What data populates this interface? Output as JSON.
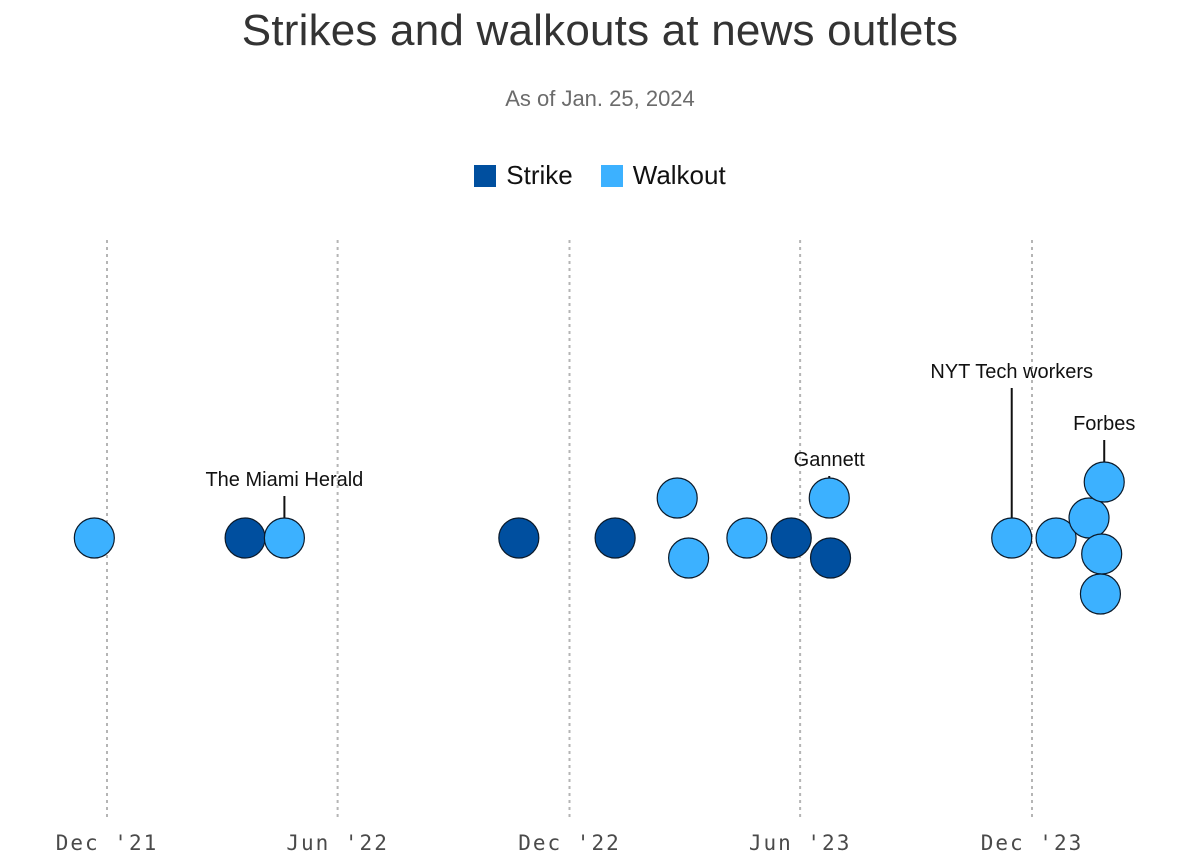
{
  "chart_data": {
    "type": "scatter",
    "title": "Strikes and walkouts at news outlets",
    "subtitle": "As of Jan. 25, 2024",
    "legend": [
      {
        "name": "Strike",
        "color": "#004F9F"
      },
      {
        "name": "Walkout",
        "color": "#3CB1FF"
      }
    ],
    "legend_placement": "top-center",
    "grid": true,
    "x_ticks": [
      {
        "date": "2021-12-01",
        "label": "Dec '21"
      },
      {
        "date": "2022-06-01",
        "label": "Jun '22"
      },
      {
        "date": "2022-12-01",
        "label": "Dec '22"
      },
      {
        "date": "2023-06-01",
        "label": "Jun '23"
      },
      {
        "date": "2023-12-01",
        "label": "Dec '23"
      }
    ],
    "xlim": [
      "2021-11-01",
      "2024-02-01"
    ],
    "points": [
      {
        "date": "2021-11-21",
        "type": "Walkout",
        "stack": 0
      },
      {
        "date": "2022-03-20",
        "type": "Strike",
        "stack": 0
      },
      {
        "date": "2022-04-20",
        "type": "Walkout",
        "stack": 0,
        "label": "The Miami Herald"
      },
      {
        "date": "2022-10-22",
        "type": "Strike",
        "stack": 0
      },
      {
        "date": "2023-01-06",
        "type": "Strike",
        "stack": 0
      },
      {
        "date": "2023-02-24",
        "type": "Walkout",
        "stack": 1
      },
      {
        "date": "2023-03-05",
        "type": "Walkout",
        "stack": -0.5
      },
      {
        "date": "2023-04-20",
        "type": "Walkout",
        "stack": 0
      },
      {
        "date": "2023-05-25",
        "type": "Strike",
        "stack": 0
      },
      {
        "date": "2023-06-24",
        "type": "Walkout",
        "stack": 1,
        "label": "Gannett"
      },
      {
        "date": "2023-06-25",
        "type": "Strike",
        "stack": -0.5
      },
      {
        "date": "2023-11-15",
        "type": "Walkout",
        "stack": 0,
        "label": "NYT Tech workers"
      },
      {
        "date": "2023-12-20",
        "type": "Walkout",
        "stack": 0
      },
      {
        "date": "2024-01-15",
        "type": "Walkout",
        "stack": 0.5
      },
      {
        "date": "2024-01-27",
        "type": "Walkout",
        "stack": 1.4,
        "label": "Forbes"
      },
      {
        "date": "2024-01-25",
        "type": "Walkout",
        "stack": -0.4
      },
      {
        "date": "2024-01-24",
        "type": "Walkout",
        "stack": -1.4
      }
    ]
  }
}
